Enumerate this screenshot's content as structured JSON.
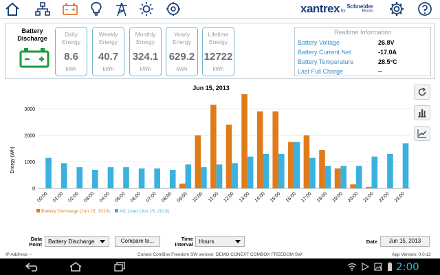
{
  "nav": {
    "icons": [
      "home-icon",
      "network-icon",
      "battery-icon",
      "lightbulb-icon",
      "tower-icon",
      "sun-icon",
      "generator-icon"
    ],
    "active_color": "#e8762c",
    "icon_color": "#1b3f7a"
  },
  "brand": {
    "name": "xantrex",
    "by": "by",
    "partner": "Schneider",
    "partner_sub": "Electric"
  },
  "device": {
    "title": "Battery Discharge",
    "icon_color": "#1a9a3a"
  },
  "stats": [
    {
      "label": "Daily Energy",
      "value": "8.6",
      "unit": "kWh"
    },
    {
      "label": "Weekly Energy",
      "value": "40.7",
      "unit": "kWh"
    },
    {
      "label": "Monthly Energy",
      "value": "324.1",
      "unit": "kWh"
    },
    {
      "label": "Yearly Energy",
      "value": "629.2",
      "unit": "kWh"
    },
    {
      "label": "Lifetime Energy",
      "value": "12722",
      "unit": "kWh"
    }
  ],
  "realtime": {
    "title": "Realtime Information",
    "rows": [
      {
        "label": "Battery Voltage",
        "value": "26.8V"
      },
      {
        "label": "Battery Current Net",
        "value": "-17.0A"
      },
      {
        "label": "Battery Temperature",
        "value": "28.5°C"
      },
      {
        "label": "Last Full Charge",
        "value": "--"
      }
    ]
  },
  "chart_data": {
    "type": "bar",
    "title": "Jun 15, 2013",
    "ylabel": "Energy (Wh)",
    "xlabel": "",
    "ylim": [
      0,
      3500
    ],
    "yticks": [
      0,
      1000,
      2000,
      3000
    ],
    "grid": true,
    "legend_position": "bottom-left",
    "categories": [
      "00:00",
      "01:00",
      "02:00",
      "03:00",
      "04:00",
      "05:00",
      "06:00",
      "07:00",
      "08:00",
      "09:00",
      "10:00",
      "11:00",
      "12:00",
      "13:00",
      "14:00",
      "15:00",
      "16:00",
      "17:00",
      "18:00",
      "19:00",
      "20:00",
      "21:00",
      "22:00",
      "23:00"
    ],
    "series": [
      {
        "name": "Battery Discharge (Jun 15, 2013)",
        "color": "#e07b1a",
        "values": [
          0,
          0,
          0,
          0,
          0,
          0,
          0,
          0,
          0,
          180,
          2000,
          3150,
          2400,
          3550,
          2900,
          2900,
          1750,
          2000,
          1450,
          750,
          150,
          50,
          0,
          0
        ]
      },
      {
        "name": "AC Load (Jun 15, 2013)",
        "color": "#3ab1de",
        "values": [
          1150,
          950,
          800,
          700,
          800,
          800,
          750,
          750,
          700,
          900,
          800,
          900,
          950,
          1200,
          1300,
          1300,
          1750,
          1150,
          850,
          850,
          850,
          1200,
          1300,
          1700
        ]
      }
    ]
  },
  "controls": {
    "data_point_label": "Data Point",
    "data_point_value": "Battery Discharge",
    "compare_label": "Compare to...",
    "interval_label": "Time Interval",
    "interval_value": "Hours",
    "date_label": "Date",
    "date_value": "Jun 15, 2013"
  },
  "status": {
    "ip": "IP Address: --",
    "version_text": "Conext ComBox Freedom SW version: DEMO CONEXT COMBOX FREEDOM SW",
    "app_version": "App Version: 0.0.12"
  },
  "system": {
    "clock": "2:00"
  }
}
